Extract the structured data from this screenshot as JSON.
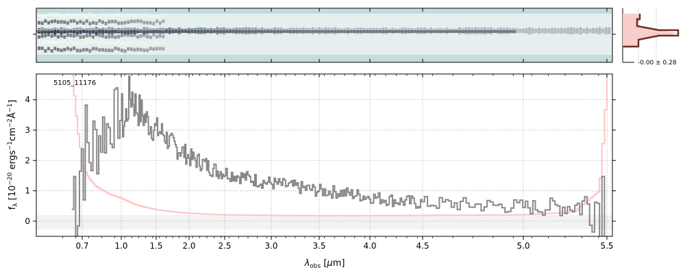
{
  "chart_data": {
    "type": "line",
    "object_label": "5105_11176",
    "xlabel": "λ_obs [μm]",
    "ylabel": "f_λ [10^−20 ergs^−1cm^−2Å^−1]",
    "x_scale": "nonlinear (dispersion-like, tick-label spacing)",
    "x_ticks": [
      "0.7",
      "1.0",
      "1.5",
      "2.0",
      "2.5",
      "3.0",
      "3.5",
      "4.0",
      "4.5",
      "5.0",
      "5.5"
    ],
    "y_ticks": [
      "0",
      "1",
      "2",
      "3",
      "4"
    ],
    "ylim": [
      -0.5,
      4.85
    ],
    "grid": true,
    "profile_label": "-0.00 ± 0.28",
    "series": [
      {
        "role": "flux",
        "color": "#888888",
        "x": [
          0.62,
          0.66,
          0.7,
          0.75,
          0.8,
          0.85,
          0.9,
          0.95,
          1.0,
          1.05,
          1.1,
          1.15,
          1.2,
          1.3,
          1.4,
          1.5,
          1.6,
          1.7,
          1.8,
          1.9,
          2.0,
          2.1,
          2.2,
          2.3,
          2.4,
          2.5,
          2.7,
          2.9,
          3.1,
          3.3,
          3.5,
          3.7,
          3.9,
          4.1,
          4.3,
          4.5,
          4.7,
          4.9,
          5.1,
          5.3,
          5.4,
          5.5
        ],
        "y": [
          0.5,
          1.5,
          2.5,
          2.2,
          2.6,
          3.0,
          3.1,
          3.5,
          3.4,
          3.2,
          4.0,
          4.2,
          3.8,
          3.5,
          3.2,
          3.0,
          2.9,
          2.6,
          2.4,
          2.3,
          2.1,
          2.0,
          1.9,
          1.75,
          1.65,
          1.6,
          1.45,
          1.3,
          1.2,
          1.1,
          1.0,
          0.95,
          0.85,
          0.75,
          0.65,
          0.6,
          0.55,
          0.5,
          0.45,
          0.5,
          0.6,
          0.8
        ]
      },
      {
        "role": "error",
        "color": "#ffc4c4",
        "x": [
          0.62,
          0.66,
          0.7,
          0.75,
          0.8,
          0.9,
          1.0,
          1.1,
          1.2,
          1.3,
          1.5,
          1.7,
          2.0,
          2.5,
          3.0,
          3.5,
          4.0,
          4.5,
          5.0,
          5.3,
          5.45,
          5.5
        ],
        "y": [
          4.8,
          3.0,
          1.8,
          1.4,
          1.15,
          0.9,
          0.75,
          0.65,
          0.55,
          0.48,
          0.38,
          0.32,
          0.26,
          0.21,
          0.19,
          0.18,
          0.18,
          0.19,
          0.21,
          0.3,
          1.0,
          4.8
        ]
      }
    ]
  }
}
